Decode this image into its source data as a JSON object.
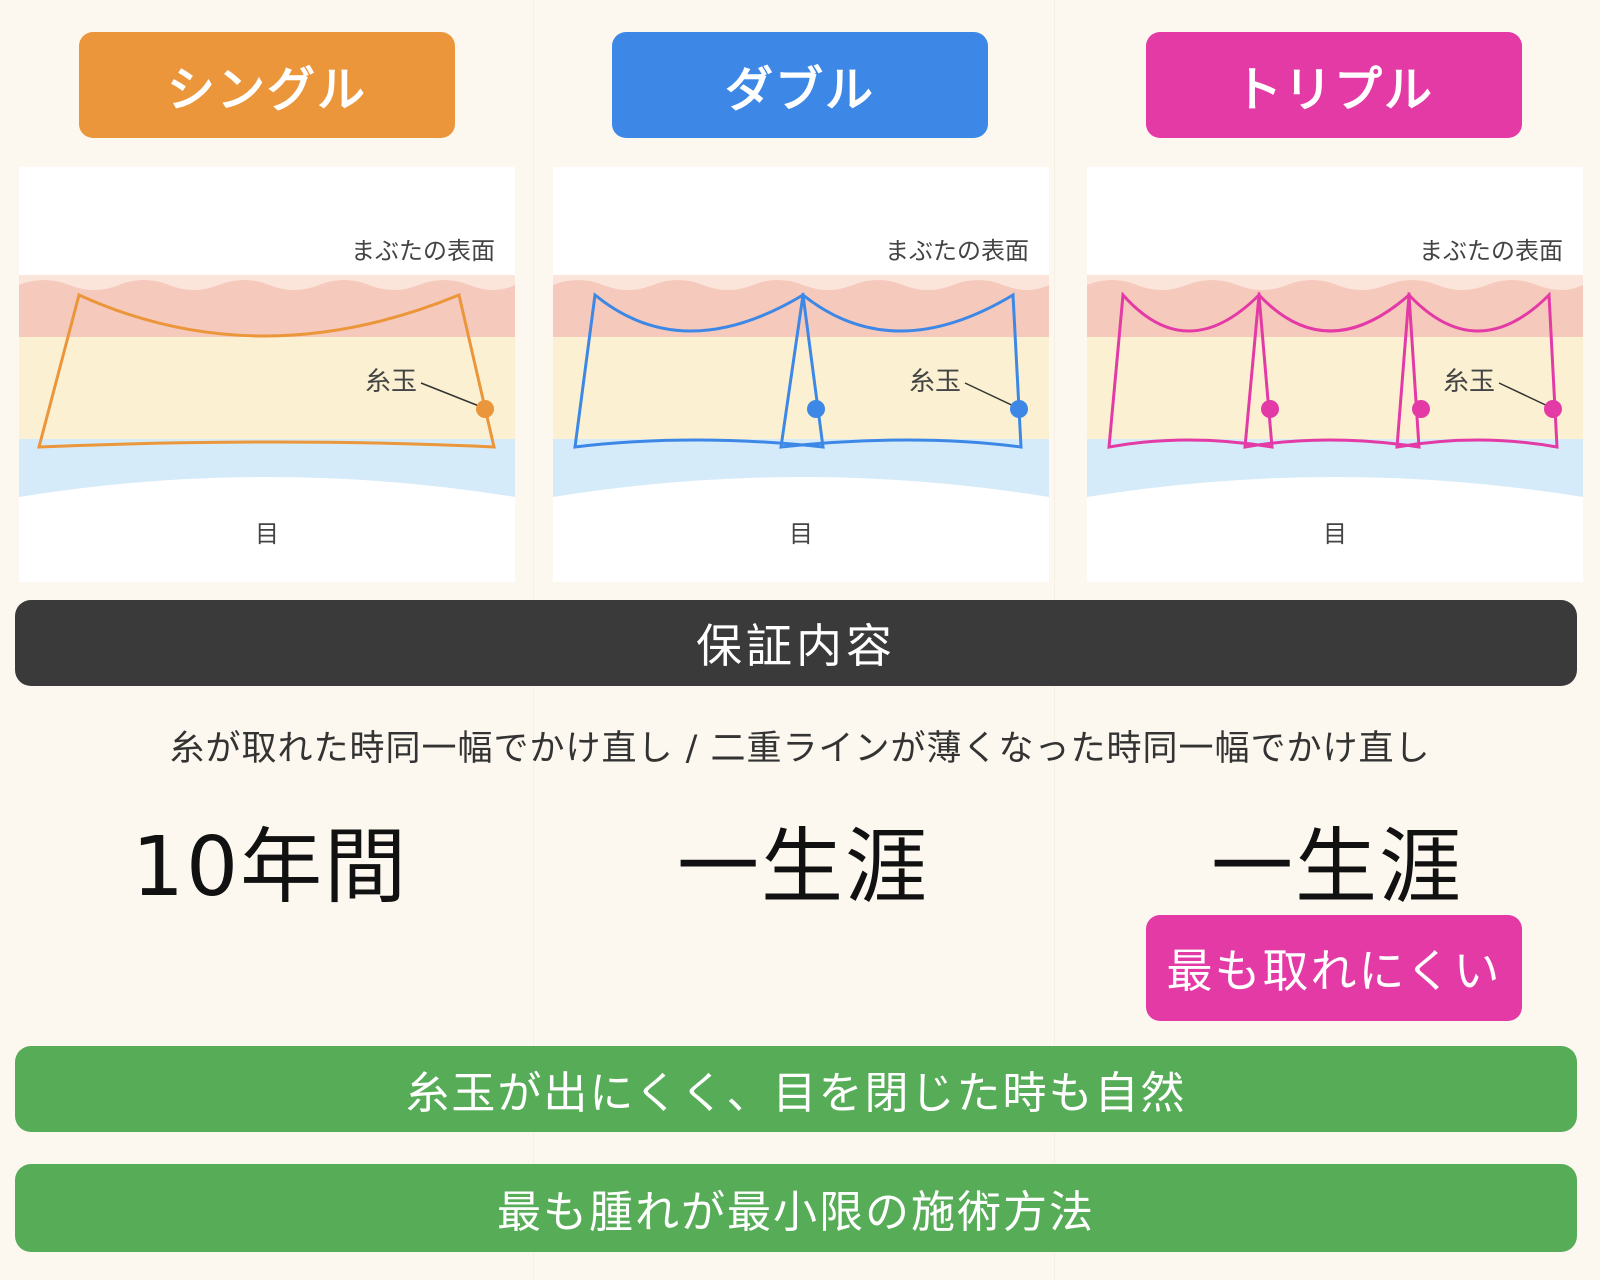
{
  "plans": [
    {
      "label": "シングル",
      "color": "#eb963a",
      "guarantee": "10年間",
      "surface_label": "まぶたの表面",
      "knot_label": "糸玉",
      "eye_label": "目"
    },
    {
      "label": "ダブル",
      "color": "#3d88e6",
      "guarantee": "一生涯",
      "surface_label": "まぶたの表面",
      "knot_label": "糸玉",
      "eye_label": "目"
    },
    {
      "label": "トリプル",
      "color": "#e33aa6",
      "guarantee": "一生涯",
      "surface_label": "まぶたの表面",
      "knot_label": "糸玉",
      "eye_label": "目"
    }
  ],
  "guarantee_header": "保証内容",
  "guarantee_description": "糸が取れた時同一幅でかけ直し / 二重ラインが薄くなった時同一幅でかけ直し",
  "triple_highlight": "最も取れにくい",
  "benefits": [
    "糸玉が出にくく、目を閉じた時も自然",
    "最も腫れが最小限の施術方法"
  ],
  "colors": {
    "skin_pink": "#f6c9bd",
    "fat_yellow": "#fbf1d2",
    "eye_blue": "#d6ebfa",
    "dark_bar": "#3a3a3a",
    "green_bar": "#57ad57"
  }
}
